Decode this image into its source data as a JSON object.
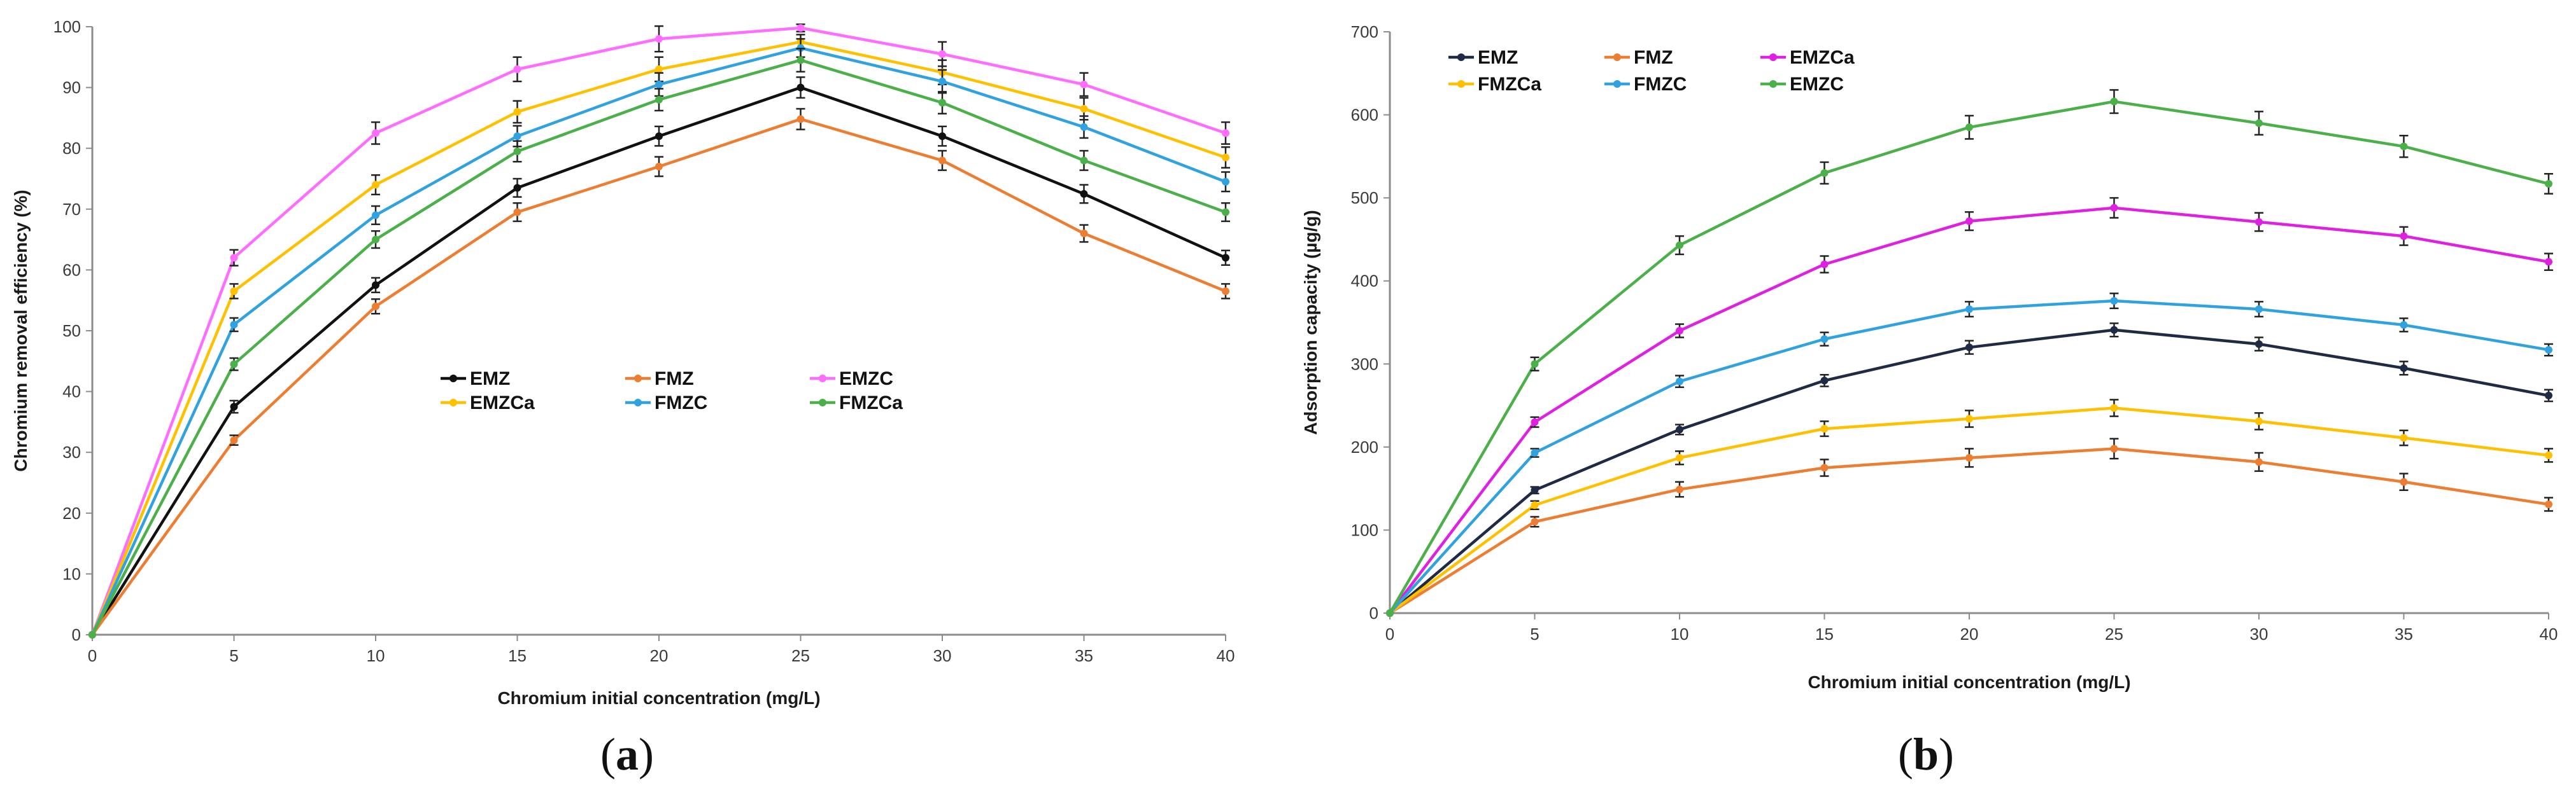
{
  "panels": [
    {
      "label_open": "(",
      "label_letter": "a",
      "label_close": ")"
    },
    {
      "label_open": "(",
      "label_letter": "b",
      "label_close": ")"
    }
  ],
  "chart_data": [
    {
      "type": "line",
      "xlabel": "Chromium initial concentration (mg/L)",
      "ylabel": "Chromium removal efficiency (%)",
      "x": [
        0,
        5,
        10,
        15,
        20,
        25,
        30,
        35,
        40
      ],
      "xlim": [
        0,
        40
      ],
      "ylim": [
        0,
        100
      ],
      "xticks": [
        0,
        5,
        10,
        15,
        20,
        25,
        30,
        35,
        40
      ],
      "yticks": [
        0,
        10,
        20,
        30,
        40,
        50,
        60,
        70,
        80,
        90,
        100
      ],
      "grid": false,
      "legend": {
        "placement": "center",
        "columns": 3
      },
      "series": [
        {
          "name": "EMZ",
          "color": "#111111",
          "values": [
            0,
            37.5,
            57.5,
            73.5,
            82,
            90,
            82,
            72.5,
            62
          ],
          "err": [
            0,
            1,
            1.2,
            1.5,
            1.6,
            1.7,
            1.6,
            1.5,
            1.2
          ]
        },
        {
          "name": "FMZ",
          "color": "#ED7D31",
          "values": [
            0,
            32,
            54,
            69.5,
            77,
            84.8,
            78,
            66,
            56.5
          ],
          "err": [
            0,
            0.8,
            1.2,
            1.5,
            1.6,
            1.7,
            1.6,
            1.4,
            1.2
          ]
        },
        {
          "name": "EMZC",
          "color": "#FF6CFF",
          "values": [
            0,
            62,
            82.5,
            93,
            98,
            99.8,
            95.5,
            90.5,
            82.5
          ],
          "err": [
            0,
            1.3,
            1.8,
            2,
            2.1,
            0.6,
            2,
            1.9,
            1.8
          ]
        },
        {
          "name": "EMZCa",
          "color": "#FFC000",
          "values": [
            0,
            56.5,
            74,
            86,
            93,
            97.5,
            92.5,
            86.5,
            78.5
          ],
          "err": [
            0,
            1.2,
            1.6,
            1.8,
            2,
            1.2,
            2,
            1.8,
            1.7
          ]
        },
        {
          "name": "FMZC",
          "color": "#31A2E0",
          "values": [
            0,
            51,
            69,
            82,
            90.5,
            96.5,
            91,
            83.5,
            74.5
          ],
          "err": [
            0,
            1.1,
            1.5,
            1.7,
            1.9,
            1.5,
            1.9,
            1.8,
            1.6
          ]
        },
        {
          "name": "FMZCa",
          "color": "#4CB04A",
          "values": [
            0,
            44.5,
            65,
            79.5,
            88,
            94.5,
            87.5,
            78,
            69.5
          ],
          "err": [
            0,
            1,
            1.4,
            1.7,
            1.8,
            1.9,
            1.8,
            1.6,
            1.5
          ]
        }
      ]
    },
    {
      "type": "line",
      "xlabel": "Chromium initial concentration (mg/L)",
      "ylabel": "Adsorption capacity (µg/g)",
      "x": [
        0,
        5,
        10,
        15,
        20,
        25,
        30,
        35,
        40
      ],
      "xlim": [
        0,
        40
      ],
      "ylim": [
        0,
        700
      ],
      "xticks": [
        0,
        5,
        10,
        15,
        20,
        25,
        30,
        35,
        40
      ],
      "yticks": [
        0,
        100,
        200,
        300,
        400,
        500,
        600,
        700
      ],
      "grid": false,
      "legend": {
        "placement": "top-left",
        "columns": 3
      },
      "series": [
        {
          "name": "EMZ",
          "color": "#1F2A44",
          "values": [
            0,
            148,
            221,
            280,
            320,
            341,
            324,
            295,
            262
          ],
          "err": [
            0,
            4,
            6,
            7,
            8,
            8,
            8,
            8,
            7
          ]
        },
        {
          "name": "FMZ",
          "color": "#ED7D31",
          "values": [
            0,
            110,
            149,
            175,
            187,
            198,
            182,
            158,
            131
          ],
          "err": [
            0,
            6,
            9,
            10,
            11,
            12,
            11,
            10,
            8
          ]
        },
        {
          "name": "EMZCa",
          "color": "#E020E0",
          "values": [
            0,
            230,
            340,
            420,
            472,
            488,
            471,
            454,
            423
          ],
          "err": [
            0,
            6,
            8,
            10,
            11,
            12,
            11,
            11,
            10
          ]
        },
        {
          "name": "FMZCa",
          "color": "#FFC000",
          "values": [
            0,
            130,
            187,
            222,
            234,
            247,
            231,
            211,
            190
          ],
          "err": [
            0,
            5,
            8,
            9,
            10,
            10,
            10,
            9,
            8
          ]
        },
        {
          "name": "FMZC",
          "color": "#31A2E0",
          "values": [
            0,
            193,
            279,
            330,
            366,
            376,
            366,
            347,
            317
          ],
          "err": [
            0,
            5,
            7,
            8,
            9,
            9,
            9,
            8,
            7
          ]
        },
        {
          "name": "EMZC",
          "color": "#4CB04A",
          "values": [
            0,
            300,
            443,
            530,
            585,
            616,
            590,
            562,
            517
          ],
          "err": [
            0,
            8,
            11,
            13,
            14,
            14,
            14,
            13,
            12
          ]
        }
      ]
    }
  ]
}
